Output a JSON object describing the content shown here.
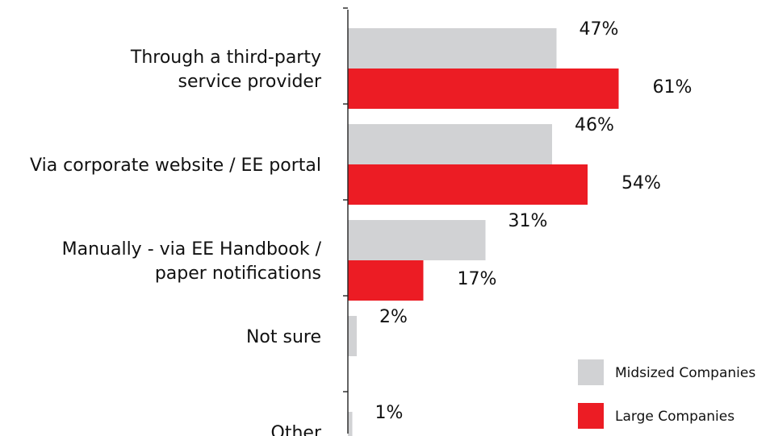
{
  "chart_data": {
    "type": "bar",
    "orientation": "horizontal",
    "categories": [
      [
        "Through a third-party",
        "service provider"
      ],
      [
        "Via corporate website / EE portal"
      ],
      [
        "Manually - via EE Handbook /",
        "paper notifications"
      ],
      [
        "Not sure"
      ],
      [
        "Other"
      ]
    ],
    "series": [
      {
        "name": "Midsized Companies",
        "color": "#d1d2d4",
        "values": [
          47,
          46,
          31,
          2,
          1
        ],
        "labels": [
          "47%",
          "46%",
          "31%",
          "2%",
          "1%"
        ]
      },
      {
        "name": "Large Companies",
        "color": "#ec1c24",
        "values": [
          61,
          54,
          17,
          null,
          null
        ],
        "labels": [
          "61%",
          "54%",
          "17%",
          "",
          ""
        ]
      }
    ],
    "xlim": [
      0,
      100
    ],
    "grid": false,
    "legend_position": "bottom-right"
  }
}
